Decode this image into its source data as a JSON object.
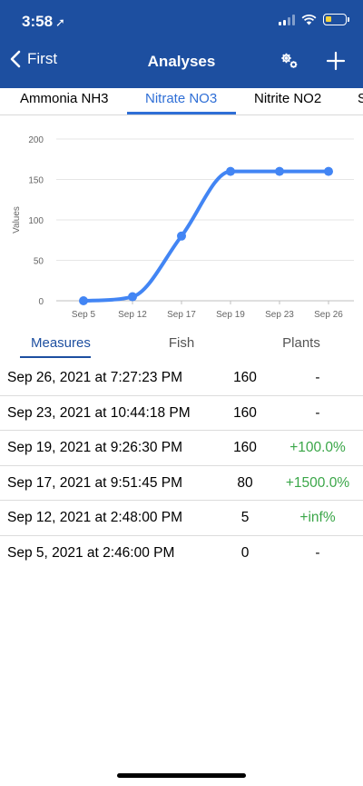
{
  "status_bar": {
    "time": "3:58",
    "location_arrow": "location-arrow-icon"
  },
  "nav": {
    "back_label": "First",
    "title": "Analyses",
    "icons": [
      "chevron-left-icon",
      "gear-icon",
      "plus-icon"
    ]
  },
  "tabs": [
    {
      "label": "Ammonia NH3",
      "active": false
    },
    {
      "label": "Nitrate NO3",
      "active": true
    },
    {
      "label": "Nitrite NO2",
      "active": false
    },
    {
      "label": "S",
      "active": false
    }
  ],
  "chart_data": {
    "type": "line",
    "title": "",
    "xlabel": "",
    "ylabel": "Values",
    "categories": [
      "Sep 5",
      "Sep 12",
      "Sep 17",
      "Sep 19",
      "Sep 23",
      "Sep 26"
    ],
    "series": [
      {
        "values": [
          0,
          5,
          80,
          160,
          160,
          160
        ]
      }
    ],
    "ylim": [
      0,
      200
    ],
    "yticks": [
      0,
      50,
      100,
      150,
      200
    ],
    "grid": true,
    "color": "#4285f4"
  },
  "subtabs": [
    {
      "label": "Measures",
      "active": true
    },
    {
      "label": "Fish",
      "active": false
    },
    {
      "label": "Plants",
      "active": false
    }
  ],
  "measures": [
    {
      "date": "Sep 26, 2021 at 7:27:23 PM",
      "value": "160",
      "change": "-",
      "positive": false
    },
    {
      "date": "Sep 23, 2021 at 10:44:18 PM",
      "value": "160",
      "change": "-",
      "positive": false
    },
    {
      "date": "Sep 19, 2021 at 9:26:30 PM",
      "value": "160",
      "change": "+100.0%",
      "positive": true
    },
    {
      "date": "Sep 17, 2021 at 9:51:45 PM",
      "value": "80",
      "change": "+1500.0%",
      "positive": true
    },
    {
      "date": "Sep 12, 2021 at 2:48:00 PM",
      "value": "5",
      "change": "+inf%",
      "positive": true
    },
    {
      "date": "Sep 5, 2021 at 2:46:00 PM",
      "value": "0",
      "change": "-",
      "positive": false
    }
  ],
  "colors": {
    "header": "#1d4fa0",
    "accent": "#2f6fd6",
    "positive": "#3aa648"
  }
}
